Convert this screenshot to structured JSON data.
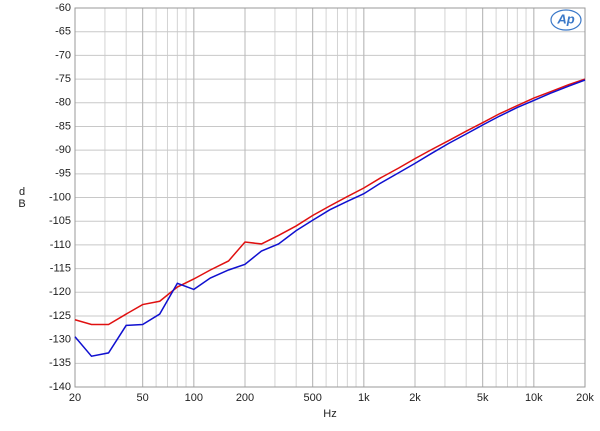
{
  "chart_data": {
    "type": "line",
    "logo": "Ap",
    "xlabel": "Hz",
    "ylabel": "dB",
    "x": [
      20,
      25,
      31.5,
      40,
      50,
      63,
      80,
      100,
      125,
      160,
      200,
      250,
      315,
      400,
      500,
      630,
      800,
      1000,
      1250,
      1600,
      2000,
      2500,
      3150,
      4000,
      5000,
      6300,
      8000,
      10000,
      12500,
      16000,
      20000
    ],
    "series": [
      {
        "color": "#e01010",
        "values": [
          -125.8,
          -126.8,
          -126.8,
          -124.6,
          -122.6,
          -121.9,
          -118.9,
          -117.2,
          -115.3,
          -113.4,
          -109.4,
          -109.8,
          -108,
          -106,
          -103.8,
          -101.8,
          -99.8,
          -98,
          -95.9,
          -93.8,
          -91.8,
          -89.9,
          -88,
          -86,
          -84.2,
          -82.3,
          -80.6,
          -79,
          -77.7,
          -76.2,
          -75
        ]
      },
      {
        "color": "#1010d0",
        "values": [
          -129.4,
          -133.5,
          -132.8,
          -127,
          -126.8,
          -124.6,
          -118.1,
          -119.4,
          -117,
          -115.3,
          -114.1,
          -111.3,
          -109.8,
          -107,
          -104.8,
          -102.6,
          -100.8,
          -99.2,
          -97,
          -94.8,
          -92.8,
          -90.7,
          -88.6,
          -86.6,
          -84.7,
          -82.8,
          -81,
          -79.5,
          -78,
          -76.5,
          -75.2
        ]
      }
    ],
    "xlog": true,
    "grid": true,
    "xlim": [
      20,
      20000
    ],
    "xticks": [
      20,
      50,
      100,
      200,
      500,
      {
        "value": 1000,
        "label": "1k"
      },
      {
        "value": 2000,
        "label": "2k"
      },
      {
        "value": 5000,
        "label": "5k"
      },
      {
        "value": 10000,
        "label": "10k"
      },
      {
        "value": 20000,
        "label": "20k"
      }
    ],
    "ylim": [
      -140,
      -60
    ],
    "yticks": [
      -60,
      -65,
      -70,
      -75,
      -80,
      -85,
      -90,
      -95,
      -100,
      -105,
      -110,
      -115,
      -120,
      -125,
      -130,
      -135,
      -140
    ]
  }
}
